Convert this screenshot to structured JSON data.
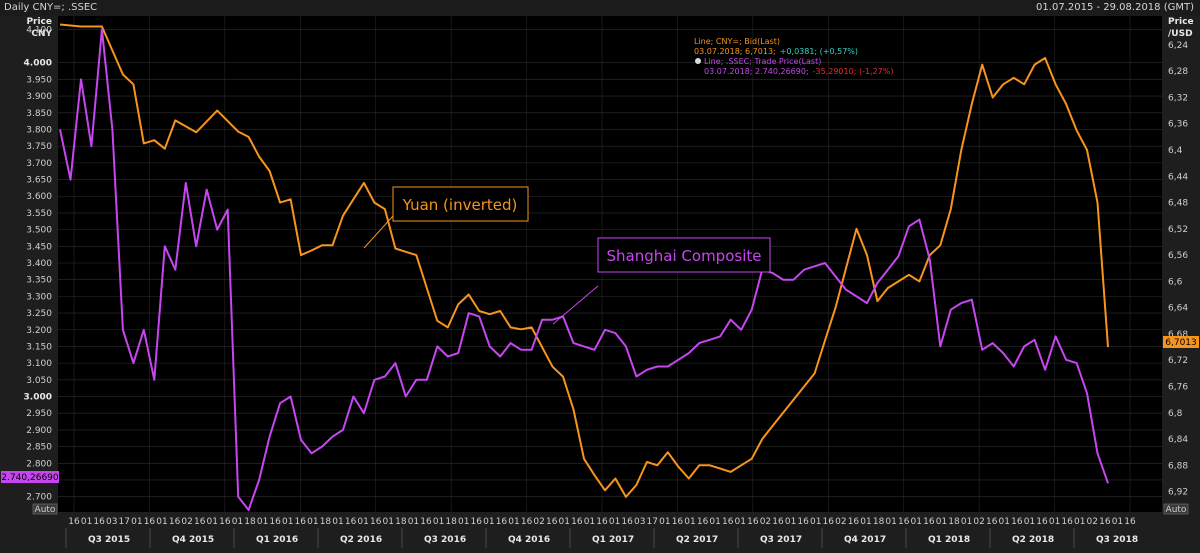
{
  "window": {
    "title": "Daily CNY=; .SSEC",
    "date_range": "01.07.2015 - 29.08.2018 (GMT)",
    "auto_left": "Auto",
    "auto_right": "Auto"
  },
  "legend": {
    "line1": "Line; CNY=; Bid(Last)",
    "line1_values": "03.07.2018; 6,7013;",
    "line1_change": "+0,0381; (+0,57%)",
    "line2": "Line; .SSEC; Trade Price(Last)",
    "line2_values": "03.07.2018; 2.740,26690;",
    "line2_change": "-35,29010; (-1,27%)"
  },
  "colors": {
    "yuan": "#f7941d",
    "shanghai": "#c646f0",
    "background": "#000000",
    "grid": "#2e2e2e",
    "legend_change_up": "#35d3c4",
    "legend_change_down": "#e03030"
  },
  "chart_data": {
    "type": "line",
    "title": "Daily CNY=; .SSEC",
    "left_axis": {
      "label": [
        "Price",
        "CNY"
      ],
      "ticks": [
        "4.100",
        "4.000",
        "3.950",
        "3.900",
        "3.850",
        "3.800",
        "3.750",
        "3.700",
        "3.650",
        "3.600",
        "3.550",
        "3.500",
        "3.450",
        "3.400",
        "3.350",
        "3.300",
        "3.250",
        "3.200",
        "3.150",
        "3.100",
        "3.050",
        "3.000",
        "2.950",
        "2.900",
        "2.850",
        "2.800",
        "2.750",
        "2.700"
      ],
      "range": [
        2660,
        4140
      ]
    },
    "right_axis": {
      "label": [
        "Price",
        "/USD"
      ],
      "inverted": true,
      "ticks": [
        "6,24",
        "6,28",
        "6,32",
        "6,36",
        "6,4",
        "6,44",
        "6,48",
        "6,52",
        "6,56",
        "6,6",
        "6,64",
        "6,68",
        "6,72",
        "6,76",
        "6,8",
        "6,84",
        "6,88",
        "6,92"
      ],
      "range": [
        6.196,
        6.948
      ]
    },
    "x_day_ticks": [
      "16",
      "01",
      "16",
      "03",
      "17",
      "01",
      "16",
      "01",
      "16",
      "02",
      "16",
      "01",
      "16",
      "01",
      "18",
      "01",
      "16",
      "01",
      "16",
      "01",
      "18",
      "01",
      "16",
      "01",
      "16",
      "01",
      "18",
      "01",
      "16",
      "01",
      "18",
      "01",
      "16",
      "01",
      "16",
      "01",
      "16",
      "02",
      "16",
      "01",
      "16",
      "01",
      "16",
      "01",
      "16",
      "03",
      "17",
      "01",
      "16",
      "01",
      "16",
      "01",
      "16",
      "01",
      "16",
      "02",
      "16",
      "01",
      "16",
      "01",
      "16",
      "02",
      "16",
      "01",
      "18",
      "01",
      "16",
      "01",
      "16",
      "01",
      "18",
      "01",
      "02",
      "16",
      "01",
      "16",
      "01",
      "16",
      "01",
      "16",
      "01",
      "02",
      "16",
      "01",
      "16"
    ],
    "quarters": [
      "Q3 2015",
      "Q4 2015",
      "Q1 2016",
      "Q2 2016",
      "Q3 2016",
      "Q4 2016",
      "Q1 2017",
      "Q2 2017",
      "Q3 2017",
      "Q4 2017",
      "Q1 2018",
      "Q2 2018",
      "Q3 2018"
    ],
    "annotations": [
      "Yuan (inverted)",
      "Shanghai Composite"
    ],
    "last_value_left": "2.740,26690",
    "last_value_right": "6,7013",
    "series": [
      {
        "name": "CNY=",
        "axis": "right",
        "color": "#f7941d",
        "x": [
          0.0,
          0.02,
          0.04,
          0.06,
          0.07,
          0.08,
          0.09,
          0.1,
          0.11,
          0.13,
          0.15,
          0.17,
          0.18,
          0.19,
          0.2,
          0.21,
          0.22,
          0.23,
          0.24,
          0.25,
          0.26,
          0.27,
          0.28,
          0.29,
          0.3,
          0.31,
          0.32,
          0.33,
          0.34,
          0.35,
          0.36,
          0.37,
          0.38,
          0.39,
          0.4,
          0.41,
          0.42,
          0.43,
          0.44,
          0.45,
          0.46,
          0.47,
          0.48,
          0.49,
          0.5,
          0.51,
          0.52,
          0.53,
          0.54,
          0.55,
          0.56,
          0.57,
          0.58,
          0.59,
          0.6,
          0.61,
          0.62,
          0.63,
          0.64,
          0.65,
          0.66,
          0.67,
          0.68,
          0.69,
          0.7,
          0.71,
          0.72,
          0.73,
          0.74,
          0.75,
          0.76,
          0.77,
          0.78,
          0.79,
          0.8,
          0.81,
          0.82,
          0.83,
          0.84,
          0.85,
          0.86,
          0.87,
          0.88,
          0.89,
          0.9,
          0.91,
          0.92,
          0.93,
          0.94,
          0.95,
          0.96,
          0.97,
          0.98,
          0.99,
          1.0
        ],
        "y": [
          6.209,
          6.212,
          6.212,
          6.285,
          6.3,
          6.39,
          6.385,
          6.398,
          6.355,
          6.373,
          6.34,
          6.372,
          6.38,
          6.41,
          6.432,
          6.48,
          6.475,
          6.56,
          6.553,
          6.545,
          6.545,
          6.5,
          6.475,
          6.45,
          6.48,
          6.49,
          6.55,
          6.555,
          6.56,
          6.61,
          6.66,
          6.67,
          6.635,
          6.62,
          6.645,
          6.65,
          6.645,
          6.67,
          6.673,
          6.67,
          6.7,
          6.73,
          6.745,
          6.795,
          6.87,
          6.895,
          6.918,
          6.9,
          6.928,
          6.91,
          6.875,
          6.88,
          6.86,
          6.882,
          6.9,
          6.88,
          6.88,
          6.885,
          6.89,
          6.88,
          6.87,
          6.84,
          6.82,
          6.8,
          6.78,
          6.76,
          6.74,
          6.69,
          6.64,
          6.58,
          6.52,
          6.56,
          6.63,
          6.61,
          6.6,
          6.59,
          6.6,
          6.56,
          6.545,
          6.49,
          6.4,
          6.33,
          6.27,
          6.32,
          6.3,
          6.29,
          6.3,
          6.27,
          6.26,
          6.3,
          6.33,
          6.37,
          6.4,
          6.48,
          6.7
        ]
      },
      {
        "name": ".SSEC",
        "axis": "left",
        "color": "#c646f0",
        "x": [
          0.0,
          0.01,
          0.02,
          0.03,
          0.04,
          0.05,
          0.06,
          0.07,
          0.08,
          0.09,
          0.1,
          0.11,
          0.12,
          0.13,
          0.14,
          0.15,
          0.16,
          0.17,
          0.18,
          0.19,
          0.2,
          0.21,
          0.22,
          0.23,
          0.24,
          0.25,
          0.26,
          0.27,
          0.28,
          0.29,
          0.3,
          0.31,
          0.32,
          0.33,
          0.34,
          0.35,
          0.36,
          0.37,
          0.38,
          0.39,
          0.4,
          0.41,
          0.42,
          0.43,
          0.44,
          0.45,
          0.46,
          0.47,
          0.48,
          0.49,
          0.5,
          0.51,
          0.52,
          0.53,
          0.54,
          0.55,
          0.56,
          0.57,
          0.58,
          0.59,
          0.6,
          0.61,
          0.62,
          0.63,
          0.64,
          0.65,
          0.66,
          0.67,
          0.68,
          0.69,
          0.7,
          0.71,
          0.72,
          0.73,
          0.74,
          0.75,
          0.76,
          0.77,
          0.78,
          0.79,
          0.8,
          0.81,
          0.82,
          0.83,
          0.84,
          0.85,
          0.86,
          0.87,
          0.88,
          0.89,
          0.9,
          0.91,
          0.92,
          0.93,
          0.94,
          0.95,
          0.96,
          0.97,
          0.98,
          0.99,
          1.0
        ],
        "y": [
          3800,
          3650,
          3950,
          3750,
          4100,
          3800,
          3200,
          3100,
          3200,
          3050,
          3450,
          3380,
          3640,
          3450,
          3620,
          3500,
          3560,
          2700,
          2660,
          2750,
          2880,
          2980,
          3000,
          2870,
          2830,
          2850,
          2880,
          2900,
          3000,
          2950,
          3050,
          3060,
          3100,
          3000,
          3050,
          3050,
          3150,
          3120,
          3130,
          3250,
          3240,
          3150,
          3120,
          3160,
          3140,
          3140,
          3230,
          3230,
          3240,
          3160,
          3150,
          3140,
          3200,
          3190,
          3150,
          3060,
          3080,
          3090,
          3090,
          3110,
          3130,
          3160,
          3170,
          3180,
          3230,
          3200,
          3260,
          3380,
          3370,
          3350,
          3350,
          3380,
          3390,
          3400,
          3360,
          3320,
          3300,
          3280,
          3340,
          3380,
          3420,
          3510,
          3530,
          3410,
          3150,
          3260,
          3280,
          3290,
          3140,
          3160,
          3130,
          3090,
          3150,
          3170,
          3080,
          3180,
          3110,
          3100,
          3010,
          2830,
          2740
        ]
      }
    ]
  }
}
